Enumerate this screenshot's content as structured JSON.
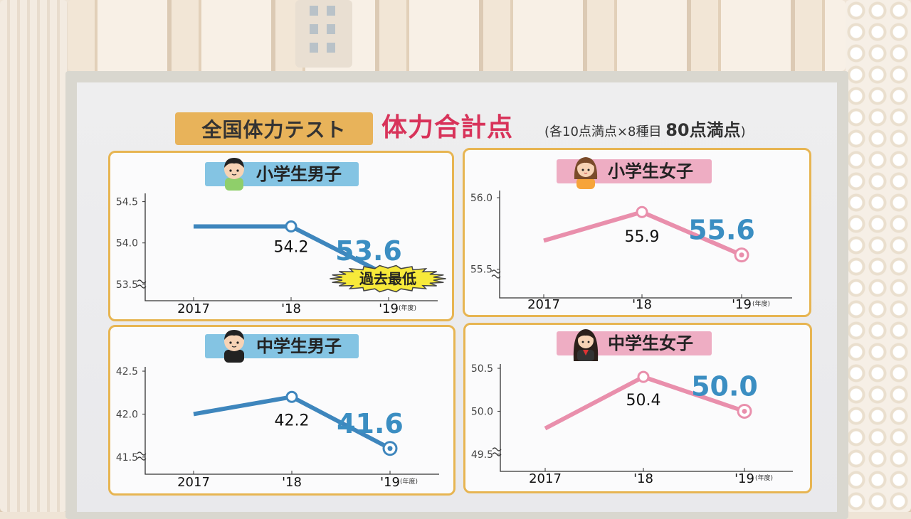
{
  "header": {
    "tag": "全国体力テスト",
    "main": "体力合計点",
    "sub_prefix": "(各10点満点×8種目 ",
    "sub_bold": "80点満点",
    "sub_suffix": ")"
  },
  "colors": {
    "boys_line": "#3e86bd",
    "girls_line": "#e98fac",
    "end_value": "#3b8ec2",
    "panel_border": "#e7b552",
    "title_red": "#d8335a"
  },
  "chart_data": [
    {
      "type": "line",
      "title": "小学生男子",
      "categories": [
        "2017",
        "'18",
        "'19"
      ],
      "unit_note": "(年度)",
      "series": [
        {
          "values": [
            54.2,
            54.2,
            53.6
          ]
        }
      ],
      "point_labels": [
        "",
        "54.2",
        "53.6"
      ],
      "yticks": [
        "54.5",
        "54.0",
        "53.5"
      ],
      "ytick_values": [
        54.5,
        54.0,
        53.5
      ],
      "ylim": [
        53.3,
        54.6
      ],
      "axis_break": true,
      "annotation": "過去最低",
      "avatar": "boy-icon"
    },
    {
      "type": "line",
      "title": "小学生女子",
      "categories": [
        "2017",
        "'18",
        "'19"
      ],
      "unit_note": "(年度)",
      "series": [
        {
          "values": [
            55.7,
            55.9,
            55.6
          ]
        }
      ],
      "point_labels": [
        "",
        "55.9",
        "55.6"
      ],
      "yticks": [
        "56.0",
        "55.5"
      ],
      "ytick_values": [
        56.0,
        55.5
      ],
      "ylim": [
        55.3,
        56.05
      ],
      "axis_break": true,
      "avatar": "girl-icon"
    },
    {
      "type": "line",
      "title": "中学生男子",
      "categories": [
        "2017",
        "'18",
        "'19"
      ],
      "unit_note": "(年度)",
      "series": [
        {
          "values": [
            42.0,
            42.2,
            41.6
          ]
        }
      ],
      "point_labels": [
        "",
        "42.2",
        "41.6"
      ],
      "yticks": [
        "42.5",
        "42.0",
        "41.5"
      ],
      "ytick_values": [
        42.5,
        42.0,
        41.5
      ],
      "ylim": [
        41.3,
        42.55
      ],
      "axis_break": true,
      "avatar": "student-boy-icon"
    },
    {
      "type": "line",
      "title": "中学生女子",
      "categories": [
        "2017",
        "'18",
        "'19"
      ],
      "unit_note": "(年度)",
      "series": [
        {
          "values": [
            49.8,
            50.4,
            50.0
          ]
        }
      ],
      "point_labels": [
        "",
        "50.4",
        "50.0"
      ],
      "yticks": [
        "50.5",
        "50.0",
        "49.5"
      ],
      "ytick_values": [
        50.5,
        50.0,
        49.5
      ],
      "ylim": [
        49.3,
        50.55
      ],
      "axis_break": true,
      "avatar": "student-girl-icon"
    }
  ]
}
